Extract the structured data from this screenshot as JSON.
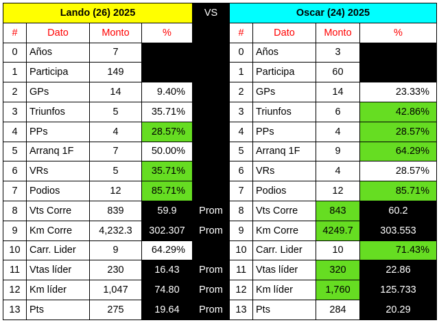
{
  "header": {
    "left_title": "Lando (26)    2025",
    "vs": "VS",
    "right_title": "Oscar (24)    2025"
  },
  "columns": {
    "num": "#",
    "dato": "Dato",
    "monto": "Monto",
    "pct": "%"
  },
  "colors": {
    "lando_header": "#ffff00",
    "oscar_header": "#00ffff",
    "highlight": "#66dd22",
    "column_header_text": "#ff0000",
    "dark_cell": "#000000"
  },
  "rows": [
    {
      "n": "0",
      "lando": {
        "dato": "Años",
        "monto": "7",
        "pct": ""
      },
      "mid": "",
      "oscar": {
        "dato": "Años",
        "monto": "3",
        "pct": ""
      }
    },
    {
      "n": "1",
      "lando": {
        "dato": "Participa",
        "monto": "149",
        "pct": ""
      },
      "mid": "",
      "oscar": {
        "dato": "Participa",
        "monto": "60",
        "pct": ""
      }
    },
    {
      "n": "2",
      "lando": {
        "dato": "GPs",
        "monto": "14",
        "pct": "9.40%"
      },
      "mid": "",
      "oscar": {
        "dato": "GPs",
        "monto": "14",
        "pct": "23.33%"
      }
    },
    {
      "n": "3",
      "lando": {
        "dato": "Triunfos",
        "monto": "5",
        "pct": "35.71%"
      },
      "mid": "",
      "oscar": {
        "dato": "Triunfos",
        "monto": "6",
        "pct": "42.86%"
      }
    },
    {
      "n": "4",
      "lando": {
        "dato": "PPs",
        "monto": "4",
        "pct": "28.57%"
      },
      "mid": "",
      "oscar": {
        "dato": "PPs",
        "monto": "4",
        "pct": "28.57%"
      }
    },
    {
      "n": "5",
      "lando": {
        "dato": "Arranq 1F",
        "monto": "7",
        "pct": "50.00%"
      },
      "mid": "",
      "oscar": {
        "dato": "Arranq 1F",
        "monto": "9",
        "pct": "64.29%"
      }
    },
    {
      "n": "6",
      "lando": {
        "dato": "VRs",
        "monto": "5",
        "pct": "35.71%"
      },
      "mid": "",
      "oscar": {
        "dato": "VRs",
        "monto": "4",
        "pct": "28.57%"
      }
    },
    {
      "n": "7",
      "lando": {
        "dato": "Podios",
        "monto": "12",
        "pct": "85.71%"
      },
      "mid": "",
      "oscar": {
        "dato": "Podios",
        "monto": "12",
        "pct": "85.71%"
      }
    },
    {
      "n": "8",
      "lando": {
        "dato": "Vts Corre",
        "monto": "839",
        "pct": "59.9"
      },
      "mid": "Prom",
      "oscar": {
        "dato": "Vts Corre",
        "monto": "843",
        "pct": "60.2"
      }
    },
    {
      "n": "9",
      "lando": {
        "dato": "Km Corre",
        "monto": "4,232.3",
        "pct": "302.307"
      },
      "mid": "Prom",
      "oscar": {
        "dato": "Km Corre",
        "monto": "4249.7",
        "pct": "303.553"
      }
    },
    {
      "n": "10",
      "lando": {
        "dato": "Carr. Lider",
        "monto": "9",
        "pct": "64.29%"
      },
      "mid": "",
      "oscar": {
        "dato": "Carr. Lider",
        "monto": "10",
        "pct": "71.43%"
      }
    },
    {
      "n": "11",
      "lando": {
        "dato": "Vtas líder",
        "monto": "230",
        "pct": "16.43"
      },
      "mid": "Prom",
      "oscar": {
        "dato": "Vtas líder",
        "monto": "320",
        "pct": "22.86"
      }
    },
    {
      "n": "12",
      "lando": {
        "dato": "Km líder",
        "monto": "1,047",
        "pct": "74.80"
      },
      "mid": "Prom",
      "oscar": {
        "dato": "Km líder",
        "monto": "1,760",
        "pct": "125.733"
      }
    },
    {
      "n": "13",
      "lando": {
        "dato": "Pts",
        "monto": "275",
        "pct": "19.64"
      },
      "mid": "Prom",
      "oscar": {
        "dato": "Pts",
        "monto": "284",
        "pct": "20.29"
      }
    }
  ]
}
